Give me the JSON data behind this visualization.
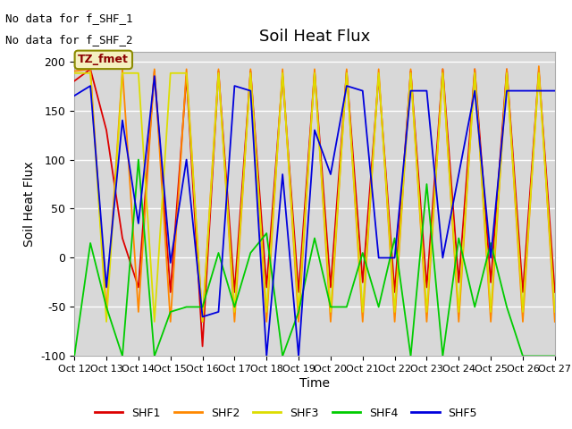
{
  "title": "Soil Heat Flux",
  "ylabel": "Soil Heat Flux",
  "xlabel": "Time",
  "ylim": [
    -100,
    210
  ],
  "note1": "No data for f_SHF_1",
  "note2": "No data for f_SHF_2",
  "tz_label": "TZ_fmet",
  "bg_color": "#d8d8d8",
  "series_colors": {
    "SHF1": "#dd0000",
    "SHF2": "#ff8800",
    "SHF3": "#dddd00",
    "SHF4": "#00cc00",
    "SHF5": "#0000dd"
  },
  "xtick_labels": [
    "Oct 12",
    "Oct 13",
    "Oct 14",
    "Oct 15",
    "Oct 16",
    "Oct 17",
    "Oct 18",
    "Oct 19",
    "Oct 20",
    "Oct 21",
    "Oct 22",
    "Oct 23",
    "Oct 24",
    "Oct 25",
    "Oct 26",
    "Oct 27"
  ],
  "yticks": [
    -100,
    -50,
    0,
    50,
    100,
    150,
    200
  ],
  "SHF1": [
    180,
    192,
    130,
    20,
    -30,
    190,
    -35,
    185,
    -90,
    190,
    -35,
    190,
    -30,
    185,
    -35,
    190,
    -30,
    190,
    -25,
    185,
    -35,
    190,
    -30,
    192,
    -25,
    192,
    -25,
    192,
    -35,
    190,
    -35
  ],
  "SHF2": [
    190,
    192,
    -55,
    192,
    -55,
    192,
    -65,
    192,
    -65,
    192,
    -65,
    192,
    -65,
    192,
    -65,
    192,
    -65,
    192,
    -65,
    192,
    -65,
    192,
    -65,
    192,
    -65,
    192,
    -65,
    192,
    -65,
    195,
    -65
  ],
  "SHF3": [
    188,
    188,
    -65,
    188,
    188,
    -65,
    188,
    188,
    -65,
    188,
    -55,
    188,
    -55,
    188,
    -55,
    188,
    -55,
    188,
    -55,
    188,
    -55,
    188,
    -55,
    188,
    -55,
    188,
    -55,
    188,
    -55,
    188,
    -55
  ],
  "SHF4": [
    -100,
    15,
    -50,
    -100,
    100,
    -100,
    -55,
    -50,
    -50,
    5,
    -50,
    5,
    25,
    -100,
    -55,
    20,
    -50,
    -50,
    5,
    -50,
    20,
    -100,
    75,
    -100,
    20,
    -50,
    15,
    -50,
    -100,
    -100,
    -100
  ],
  "SHF5": [
    165,
    175,
    -30,
    140,
    35,
    185,
    -5,
    100,
    -60,
    -55,
    175,
    170,
    -100,
    85,
    -100,
    130,
    85,
    175,
    170,
    0,
    0,
    170,
    170,
    0,
    85,
    170,
    0,
    170,
    170,
    170,
    170
  ]
}
